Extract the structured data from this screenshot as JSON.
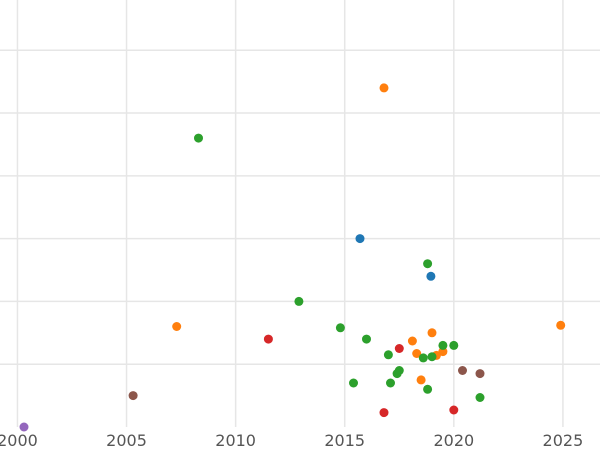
{
  "chart_data": {
    "type": "scatter",
    "title": "",
    "xlabel": "",
    "ylabel": "",
    "xlim": [
      1999.2,
      2026.7
    ],
    "ylim": [
      0,
      6.8
    ],
    "grid": true,
    "x_ticks": [
      2000,
      2005,
      2010,
      2015,
      2020,
      2025
    ],
    "y_gridlines": [
      1,
      2,
      3,
      4,
      5,
      6
    ],
    "series": [
      {
        "color": "#1f77b4",
        "points": [
          {
            "x": 2015.7,
            "y": 3.0
          },
          {
            "x": 2018.95,
            "y": 2.4
          }
        ]
      },
      {
        "color": "#ff7f0e",
        "points": [
          {
            "x": 2016.8,
            "y": 5.4
          },
          {
            "x": 2007.3,
            "y": 1.6
          },
          {
            "x": 2019.0,
            "y": 1.5
          },
          {
            "x": 2018.1,
            "y": 1.37
          },
          {
            "x": 2018.3,
            "y": 1.17
          },
          {
            "x": 2019.2,
            "y": 1.14
          },
          {
            "x": 2019.5,
            "y": 1.2
          },
          {
            "x": 2018.5,
            "y": 0.75
          },
          {
            "x": 2024.9,
            "y": 1.62
          }
        ]
      },
      {
        "color": "#2ca02c",
        "points": [
          {
            "x": 2008.3,
            "y": 4.6
          },
          {
            "x": 2012.9,
            "y": 2.0
          },
          {
            "x": 2014.8,
            "y": 1.58
          },
          {
            "x": 2015.4,
            "y": 0.7
          },
          {
            "x": 2016.0,
            "y": 1.4
          },
          {
            "x": 2017.0,
            "y": 1.15
          },
          {
            "x": 2017.1,
            "y": 0.7
          },
          {
            "x": 2017.4,
            "y": 0.85
          },
          {
            "x": 2017.5,
            "y": 0.9
          },
          {
            "x": 2018.6,
            "y": 1.1
          },
          {
            "x": 2018.8,
            "y": 0.6
          },
          {
            "x": 2018.8,
            "y": 2.6
          },
          {
            "x": 2019.0,
            "y": 1.12
          },
          {
            "x": 2019.5,
            "y": 1.3
          },
          {
            "x": 2020.0,
            "y": 1.3
          },
          {
            "x": 2021.2,
            "y": 0.47
          }
        ]
      },
      {
        "color": "#d62728",
        "points": [
          {
            "x": 2011.5,
            "y": 1.4
          },
          {
            "x": 2017.5,
            "y": 1.25
          },
          {
            "x": 2016.8,
            "y": 0.23
          },
          {
            "x": 2020.0,
            "y": 0.27
          }
        ]
      },
      {
        "color": "#9467bd",
        "points": [
          {
            "x": 2000.3,
            "y": 0.0
          }
        ]
      },
      {
        "color": "#8c564b",
        "points": [
          {
            "x": 2005.3,
            "y": 0.5
          },
          {
            "x": 2020.4,
            "y": 0.9
          },
          {
            "x": 2021.2,
            "y": 0.85
          }
        ]
      }
    ]
  }
}
